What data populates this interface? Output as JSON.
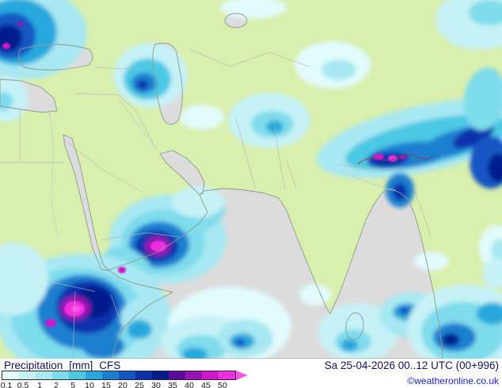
{
  "footer": {
    "parameter": "Precipitation",
    "units": "[mm]",
    "model": "CFS",
    "datetime": "Sa 25-04-2026 00..12 UTC (00+996)",
    "copyright": "©weatheronline.co.uk"
  },
  "legend": {
    "values": [
      "0.1",
      "0.5",
      "1",
      "2",
      "5",
      "10",
      "15",
      "20",
      "25",
      "30",
      "35",
      "40",
      "45",
      "50"
    ],
    "colors": [
      "#e2fbfc",
      "#c6f2f7",
      "#a8e8f2",
      "#7edcec",
      "#4cc8e4",
      "#28a8dc",
      "#1d7fd0",
      "#1356c4",
      "#0a30ac",
      "#051c8c",
      "#5c0b9c",
      "#9912b4",
      "#cf17cd",
      "#ef2ee0"
    ],
    "arrow_color": "#fb55e8"
  },
  "map": {
    "land_color": "#d9efad",
    "sea_color": "#dcdcdc",
    "coast_color": "#8f9a8f"
  }
}
